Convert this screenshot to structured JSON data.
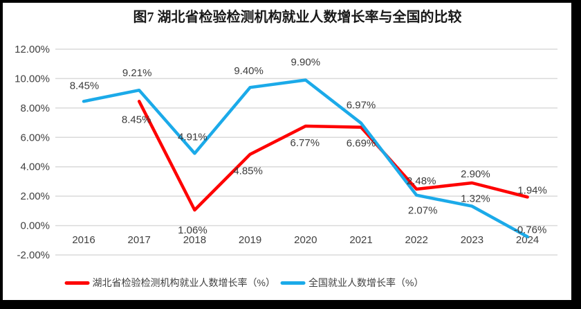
{
  "window": {
    "frame_color": "#000000",
    "background_color": "#ffffff"
  },
  "chart_data": {
    "type": "line",
    "title": "图7 湖北省检验检测机构就业人数增长率与全国的比较",
    "categories": [
      "2016",
      "2017",
      "2018",
      "2019",
      "2020",
      "2021",
      "2022",
      "2023",
      "2024"
    ],
    "y_axis": {
      "min": -2,
      "max": 12,
      "step": 2,
      "tick_labels": [
        "12.00%",
        "10.00%",
        "8.00%",
        "6.00%",
        "4.00%",
        "2.00%",
        "0.00%",
        "-2.00%"
      ]
    },
    "grid": true,
    "grid_color": "#DADADA",
    "text_color": "#404040",
    "legend_position": "bottom",
    "series": [
      {
        "id": "hubei",
        "name": "湖北省检验检测机构就业人数增长率（%）",
        "color": "#FE0000",
        "values": [
          null,
          8.45,
          1.06,
          4.85,
          6.77,
          6.69,
          2.48,
          2.9,
          1.94
        ],
        "labels": [
          null,
          "8.45%",
          "1.06%",
          "4.85%",
          "6.77%",
          "6.69%",
          "2.48%",
          "2.90%",
          "1.94%"
        ],
        "label_offsets": [
          null,
          [
            -4,
            31
          ],
          [
            -3,
            34
          ],
          [
            -3,
            29
          ],
          [
            -1,
            29
          ],
          [
            0,
            28
          ],
          [
            7,
            -7
          ],
          [
            5,
            -8
          ],
          [
            7,
            -5
          ]
        ]
      },
      {
        "id": "national",
        "name": "全国就业人数增长率（%）",
        "color": "#1BAAE9",
        "values": [
          8.45,
          9.21,
          4.91,
          9.4,
          9.9,
          6.97,
          2.07,
          1.32,
          -0.76
        ],
        "labels": [
          "8.45%",
          "9.21%",
          "4.91%",
          "9.40%",
          "9.90%",
          "6.97%",
          "2.07%",
          "1.32%",
          "-0.76%"
        ],
        "label_offsets": [
          [
            1,
            -18
          ],
          [
            -3,
            -20
          ],
          [
            -3,
            -19
          ],
          [
            -2,
            -19
          ],
          [
            0,
            -21
          ],
          [
            0,
            -21
          ],
          [
            9,
            27
          ],
          [
            5,
            -6
          ],
          [
            4,
            -5
          ]
        ]
      }
    ]
  }
}
